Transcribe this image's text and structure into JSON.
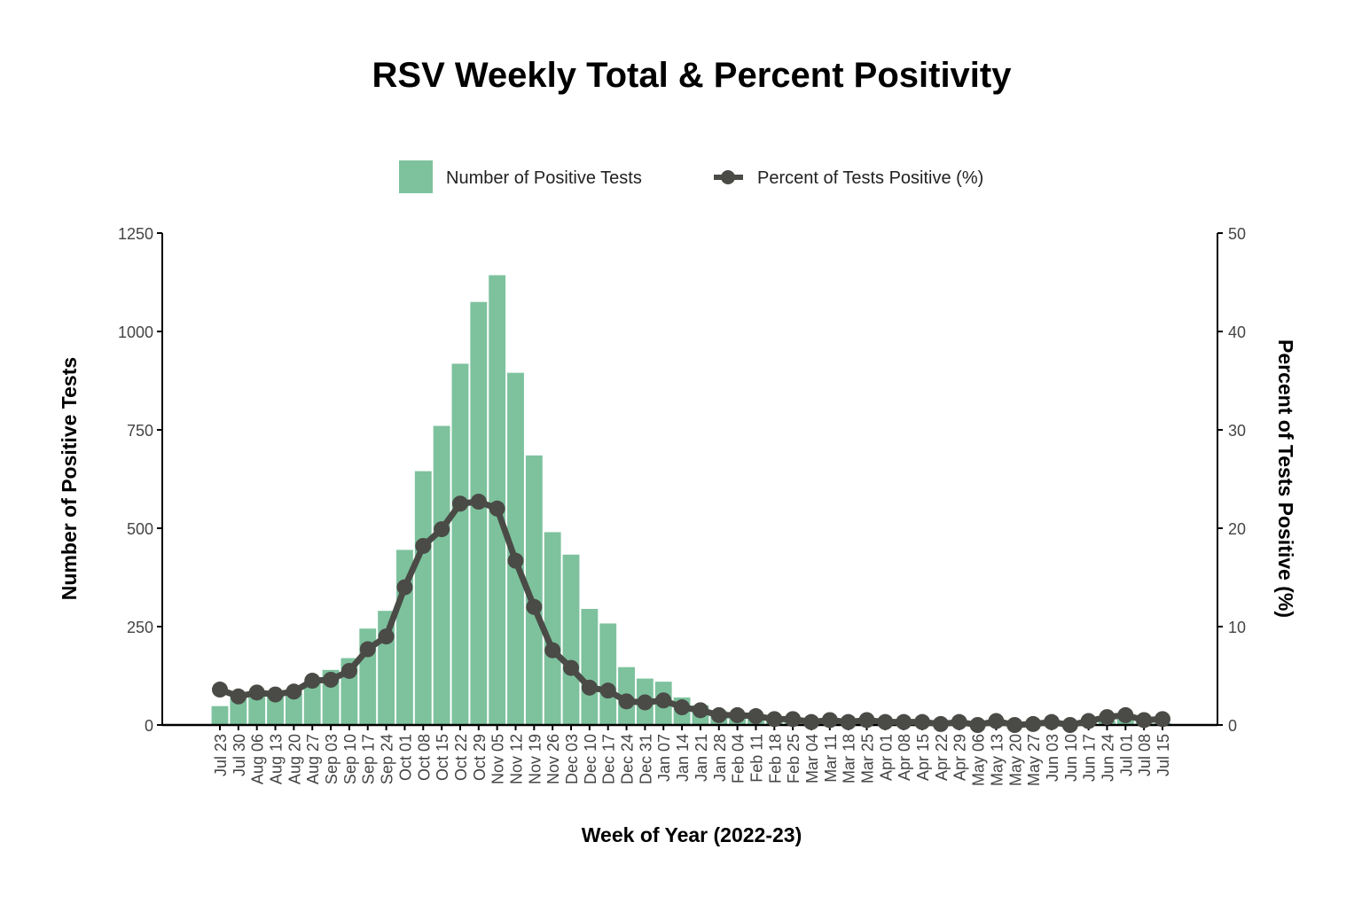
{
  "chart_data": {
    "type": "bar+line",
    "title": "RSV Weekly Total & Percent Positivity",
    "xlabel": "Week of Year (2022-23)",
    "ylabel": "Number of Positive Tests",
    "y2label": "Percent of Tests Positive (%)",
    "ylim": [
      0,
      1250
    ],
    "y2lim": [
      0,
      50
    ],
    "yticks": [
      0,
      250,
      500,
      750,
      1000,
      1250
    ],
    "y2ticks": [
      0,
      10,
      20,
      30,
      40,
      50
    ],
    "grid": false,
    "legend_position": "top",
    "colors": {
      "bars": "#7dc29d",
      "line": "#4a4a46"
    },
    "categories": [
      "Jul 23",
      "Jul 30",
      "Aug 06",
      "Aug 13",
      "Aug 20",
      "Aug 27",
      "Sep 03",
      "Sep 10",
      "Sep 17",
      "Sep 24",
      "Oct 01",
      "Oct 08",
      "Oct 15",
      "Oct 22",
      "Oct 29",
      "Nov 05",
      "Nov 12",
      "Nov 19",
      "Nov 26",
      "Dec 03",
      "Dec 10",
      "Dec 17",
      "Dec 24",
      "Dec 31",
      "Jan 07",
      "Jan 14",
      "Jan 21",
      "Jan 28",
      "Feb 04",
      "Feb 11",
      "Feb 18",
      "Feb 25",
      "Mar 04",
      "Mar 11",
      "Mar 18",
      "Mar 25",
      "Apr 01",
      "Apr 08",
      "Apr 15",
      "Apr 22",
      "Apr 29",
      "May 06",
      "May 13",
      "May 20",
      "May 27",
      "Jun 03",
      "Jun 10",
      "Jun 17",
      "Jun 24",
      "Jul 01",
      "Jul 08",
      "Jul 15"
    ],
    "series": [
      {
        "name": "Number of Positive Tests",
        "type": "bar",
        "axis": "left",
        "values": [
          48,
          70,
          75,
          75,
          80,
          110,
          140,
          170,
          245,
          290,
          445,
          645,
          760,
          918,
          1075,
          1143,
          895,
          685,
          490,
          433,
          295,
          258,
          147,
          118,
          110,
          70,
          50,
          35,
          25,
          20,
          15,
          12,
          8,
          10,
          7,
          9,
          6,
          6,
          6,
          4,
          5,
          3,
          6,
          3,
          3,
          5,
          3,
          7,
          10,
          15,
          8,
          5
        ]
      },
      {
        "name": "Percent of Tests Positive (%)",
        "type": "line",
        "axis": "right",
        "values": [
          3.6,
          2.9,
          3.3,
          3.1,
          3.4,
          4.5,
          4.6,
          5.5,
          7.7,
          9.0,
          14.0,
          18.2,
          19.9,
          22.5,
          22.7,
          22.0,
          16.7,
          12.0,
          7.6,
          5.8,
          3.8,
          3.5,
          2.4,
          2.3,
          2.5,
          1.8,
          1.5,
          1.0,
          1.0,
          0.9,
          0.6,
          0.6,
          0.3,
          0.5,
          0.3,
          0.5,
          0.3,
          0.3,
          0.3,
          0.1,
          0.3,
          0.0,
          0.4,
          0.0,
          0.1,
          0.3,
          0.0,
          0.4,
          0.8,
          1.0,
          0.5,
          0.6
        ]
      }
    ]
  }
}
